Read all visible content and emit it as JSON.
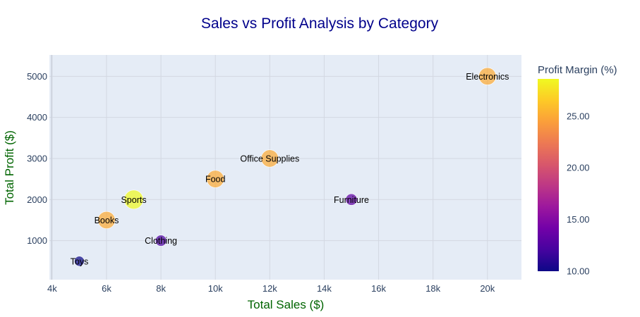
{
  "chart_data": {
    "type": "scatter",
    "title": "Sales vs Profit Analysis by Category",
    "xlabel": "Total Sales ($)",
    "ylabel": "Total Profit ($)",
    "xlim": [
      3900,
      21250
    ],
    "ylim": [
      50,
      5520
    ],
    "x_ticks": [
      4000,
      6000,
      8000,
      10000,
      12000,
      14000,
      16000,
      18000,
      20000
    ],
    "x_tick_labels": [
      "4k",
      "6k",
      "8k",
      "10k",
      "12k",
      "14k",
      "16k",
      "18k",
      "20k"
    ],
    "y_ticks": [
      1000,
      2000,
      3000,
      4000,
      5000
    ],
    "y_tick_labels": [
      "1000",
      "2000",
      "3000",
      "4000",
      "5000"
    ],
    "grid": true,
    "colorbar": {
      "title": "Profit Margin (%)",
      "range": [
        10,
        28.6
      ],
      "ticks": [
        10,
        15,
        20,
        25
      ],
      "tick_labels": [
        "10.00",
        "15.00",
        "20.00",
        "25.00"
      ],
      "colorscale": [
        "#0d0887",
        "#46039f",
        "#7201a8",
        "#9c179e",
        "#bd3786",
        "#d8576b",
        "#ed7953",
        "#fb9f3a",
        "#fdca26",
        "#f0f921"
      ]
    },
    "points": [
      {
        "label": "Toys",
        "x": 5000,
        "y": 500,
        "margin": 10.0
      },
      {
        "label": "Books",
        "x": 6000,
        "y": 1500,
        "margin": 25.0
      },
      {
        "label": "Sports",
        "x": 7000,
        "y": 2000,
        "margin": 28.6
      },
      {
        "label": "Clothing",
        "x": 8000,
        "y": 1000,
        "margin": 12.5
      },
      {
        "label": "Food",
        "x": 10000,
        "y": 2500,
        "margin": 25.0
      },
      {
        "label": "Office Supplies",
        "x": 12000,
        "y": 3000,
        "margin": 25.0
      },
      {
        "label": "Furniture",
        "x": 15000,
        "y": 2000,
        "margin": 13.3
      },
      {
        "label": "Electronics",
        "x": 20000,
        "y": 5000,
        "margin": 25.0
      }
    ]
  }
}
